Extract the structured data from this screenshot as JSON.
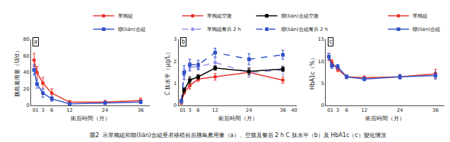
{
  "chart_data": [
    {
      "type": "line",
      "x": [
        0,
        1,
        3,
        6,
        12,
        24,
        36
      ],
      "xlim": [
        -1,
        39
      ],
      "xticks": [
        0,
        1,
        3,
        6,
        12,
        24,
        36
      ],
      "ylim": [
        0,
        80
      ],
      "yticks": [
        0,
        20,
        40,
        60,
        80
      ],
      "xlabel": "術后時間（月）",
      "ylabel": "胰島素用量（U/d）",
      "grid": false,
      "legend": "upper right",
      "annotations": [
        "a"
      ],
      "series": [
        {
          "name": "單獨組",
          "color": "#e8302a",
          "marker": "circle",
          "line_style": "solid",
          "values": [
            55,
            40,
            27,
            15,
            4,
            4,
            6
          ],
          "errors": [
            8,
            7,
            7,
            5,
            2,
            2,
            3
          ]
        },
        {
          "name": "聯(lián)合組",
          "color": "#3050c8",
          "marker": "square",
          "line_style": "solid",
          "values": [
            43,
            26,
            15,
            8,
            2,
            3,
            4
          ],
          "errors": [
            6,
            5,
            5,
            3,
            1,
            2,
            2
          ]
        }
      ]
    },
    {
      "type": "line",
      "x": [
        0,
        1,
        3,
        6,
        12,
        24,
        36
      ],
      "xlim": [
        -1,
        41
      ],
      "xticks": [
        0,
        1,
        3,
        6,
        12,
        24,
        36,
        40
      ],
      "ylim": [
        0,
        3
      ],
      "yticks": [
        0,
        1,
        2,
        3
      ],
      "xlabel": "術后時間（月）",
      "ylabel": "C 肽水平（μg/L）",
      "grid": false,
      "legend": "upper left",
      "annotations": [
        "b"
      ],
      "series": [
        {
          "name": "單獨組空腹",
          "color": "#e8302a",
          "marker": "circle",
          "line_style": "solid",
          "values": [
            0.1,
            0.6,
            0.9,
            1.2,
            1.3,
            1.5,
            1.15
          ],
          "errors": [
            0.05,
            0.1,
            0.15,
            0.1,
            0.15,
            0.2,
            0.15
          ]
        },
        {
          "name": "單獨組餐后 2 h",
          "color": "#9090e8",
          "marker": "circle",
          "line_style": "dashed",
          "values": [
            0.15,
            1.4,
            1.75,
            1.75,
            1.95,
            1.5,
            1.6
          ],
          "errors": [
            0.05,
            0.25,
            0.2,
            0.15,
            0.2,
            0.2,
            0.2
          ]
        },
        {
          "name": "聯(lián)合組空腹",
          "color": "black",
          "marker": "square",
          "line_style": "solid",
          "values": [
            0.2,
            0.7,
            1.15,
            1.3,
            1.7,
            1.55,
            1.65
          ],
          "errors": [
            0.05,
            0.1,
            0.15,
            0.1,
            0.1,
            0.15,
            0.1
          ]
        },
        {
          "name": "聯(lián)合組餐后 2 h",
          "color": "#3050c8",
          "marker": "square",
          "line_style": "dashed",
          "values": [
            0.2,
            1.5,
            1.85,
            1.85,
            2.4,
            2.1,
            2.3
          ],
          "errors": [
            0.05,
            0.3,
            0.25,
            0.2,
            0.2,
            0.25,
            0.2
          ]
        }
      ]
    },
    {
      "type": "line",
      "x": [
        0,
        1,
        3,
        6,
        12,
        24,
        36
      ],
      "xlim": [
        -1,
        39
      ],
      "xticks": [
        0,
        1,
        3,
        6,
        12,
        24,
        36
      ],
      "ylim": [
        0,
        15
      ],
      "yticks": [
        0,
        5,
        10,
        15
      ],
      "xlabel": "術后時間（月）",
      "ylabel": "HbA1c（%）",
      "grid": false,
      "legend": "upper right",
      "annotations": [
        "c"
      ],
      "series": [
        {
          "name": "單獨組",
          "color": "#e8302a",
          "marker": "circle",
          "line_style": "solid",
          "values": [
            11.0,
            9.8,
            8.2,
            6.5,
            6.3,
            6.5,
            7.2
          ],
          "errors": [
            0.8,
            0.6,
            0.5,
            0.4,
            0.4,
            0.5,
            1.0
          ]
        },
        {
          "name": "聯(lián)合組",
          "color": "#3050c8",
          "marker": "square",
          "line_style": "solid",
          "values": [
            11.1,
            9.0,
            8.8,
            6.5,
            6.0,
            6.5,
            6.8
          ],
          "errors": [
            0.7,
            0.6,
            0.5,
            0.4,
            0.4,
            0.5,
            0.8
          ]
        }
      ]
    }
  ],
  "caption": "圖2  示單獨組和聯(lián)合組受者移植前后胰島素用量（a）、空腹及餐后 2 h C 肽水平（b）及 HbA1c（c）變化情況"
}
